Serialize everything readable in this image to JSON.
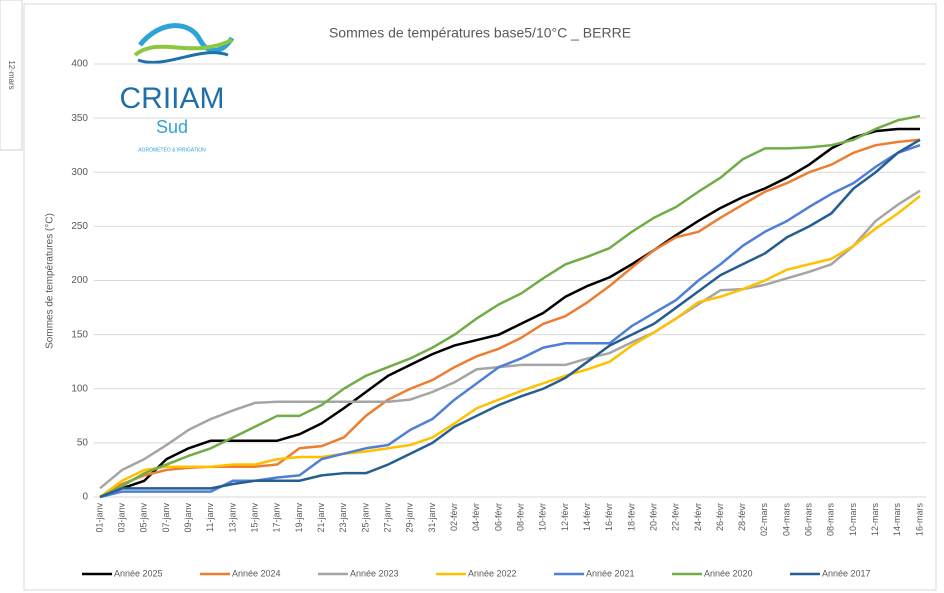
{
  "side_label": "12-mars",
  "logo": {
    "name": "CRIIAM",
    "sub": "Sud",
    "tagline": "AGROMÉTÉO & IRRIGATION"
  },
  "chart_data": {
    "type": "line",
    "title": "Sommes de températures base5/10°C _ BERRE",
    "y_label": "Sommes de températures (°C)",
    "categories": [
      "01-janv",
      "03-janv",
      "05-janv",
      "07-janv",
      "09-janv",
      "11-janv",
      "13-janv",
      "15-janv",
      "17-janv",
      "19-janv",
      "21-janv",
      "23-janv",
      "25-janv",
      "27-janv",
      "29-janv",
      "31-janv",
      "02-févr",
      "04-févr",
      "06-févr",
      "08-févr",
      "10-févr",
      "12-févr",
      "14-févr",
      "16-févr",
      "18-févr",
      "20-févr",
      "22-févr",
      "24-févr",
      "26-févr",
      "28-févr",
      "02-mars",
      "04-mars",
      "06-mars",
      "08-mars",
      "10-mars",
      "12-mars",
      "14-mars",
      "16-mars"
    ],
    "ylim": [
      0,
      400
    ],
    "yticks": [
      0,
      50,
      100,
      150,
      200,
      250,
      300,
      350,
      400
    ],
    "grid": true,
    "legend": "bottom",
    "series": [
      {
        "name": "Année 2025",
        "color": "#000000",
        "values": [
          0,
          8,
          15,
          35,
          45,
          52,
          52,
          52,
          52,
          58,
          68,
          82,
          97,
          112,
          122,
          132,
          140,
          145,
          150,
          160,
          170,
          185,
          195,
          203,
          215,
          228,
          242,
          255,
          267,
          277,
          285,
          295,
          307,
          322,
          332,
          338,
          340,
          340
        ]
      },
      {
        "name": "Année 2024",
        "color": "#ed7d31",
        "values": [
          0,
          12,
          20,
          25,
          27,
          28,
          28,
          28,
          30,
          45,
          47,
          55,
          75,
          90,
          100,
          108,
          120,
          130,
          137,
          147,
          160,
          167,
          180,
          195,
          212,
          228,
          240,
          245,
          258,
          270,
          282,
          290,
          300,
          307,
          318,
          325,
          328,
          330
        ]
      },
      {
        "name": "Année 2023",
        "color": "#a5a5a5",
        "values": [
          8,
          25,
          35,
          48,
          62,
          72,
          80,
          87,
          88,
          88,
          88,
          88,
          88,
          88,
          90,
          97,
          106,
          118,
          120,
          122,
          122,
          122,
          128,
          133,
          143,
          152,
          165,
          178,
          191,
          192,
          196,
          202,
          208,
          215,
          232,
          255,
          270,
          283
        ]
      },
      {
        "name": "Année 2022",
        "color": "#ffc000",
        "values": [
          0,
          15,
          25,
          28,
          28,
          28,
          30,
          30,
          35,
          37,
          37,
          40,
          42,
          45,
          48,
          55,
          68,
          82,
          90,
          98,
          105,
          112,
          118,
          125,
          140,
          152,
          165,
          180,
          185,
          192,
          200,
          210,
          215,
          220,
          232,
          248,
          262,
          278
        ]
      },
      {
        "name": "Année 2021",
        "color": "#4f7fd6",
        "values": [
          0,
          5,
          5,
          5,
          5,
          5,
          15,
          15,
          18,
          20,
          35,
          40,
          45,
          48,
          62,
          72,
          90,
          105,
          120,
          128,
          138,
          142,
          142,
          142,
          158,
          170,
          182,
          200,
          215,
          232,
          245,
          255,
          268,
          280,
          290,
          305,
          318,
          325
        ]
      },
      {
        "name": "Année 2020",
        "color": "#70ad47",
        "values": [
          0,
          10,
          22,
          30,
          38,
          45,
          55,
          65,
          75,
          75,
          85,
          100,
          112,
          120,
          128,
          138,
          150,
          165,
          178,
          188,
          202,
          215,
          222,
          230,
          245,
          258,
          268,
          282,
          295,
          312,
          322,
          322,
          323,
          325,
          330,
          340,
          348,
          352
        ]
      },
      {
        "name": "Année 2017",
        "color": "#255e91",
        "values": [
          0,
          8,
          8,
          8,
          8,
          8,
          12,
          15,
          15,
          15,
          20,
          22,
          22,
          30,
          40,
          50,
          65,
          75,
          85,
          93,
          100,
          110,
          125,
          140,
          150,
          160,
          175,
          190,
          205,
          215,
          225,
          240,
          250,
          262,
          285,
          300,
          318,
          330
        ]
      }
    ]
  }
}
